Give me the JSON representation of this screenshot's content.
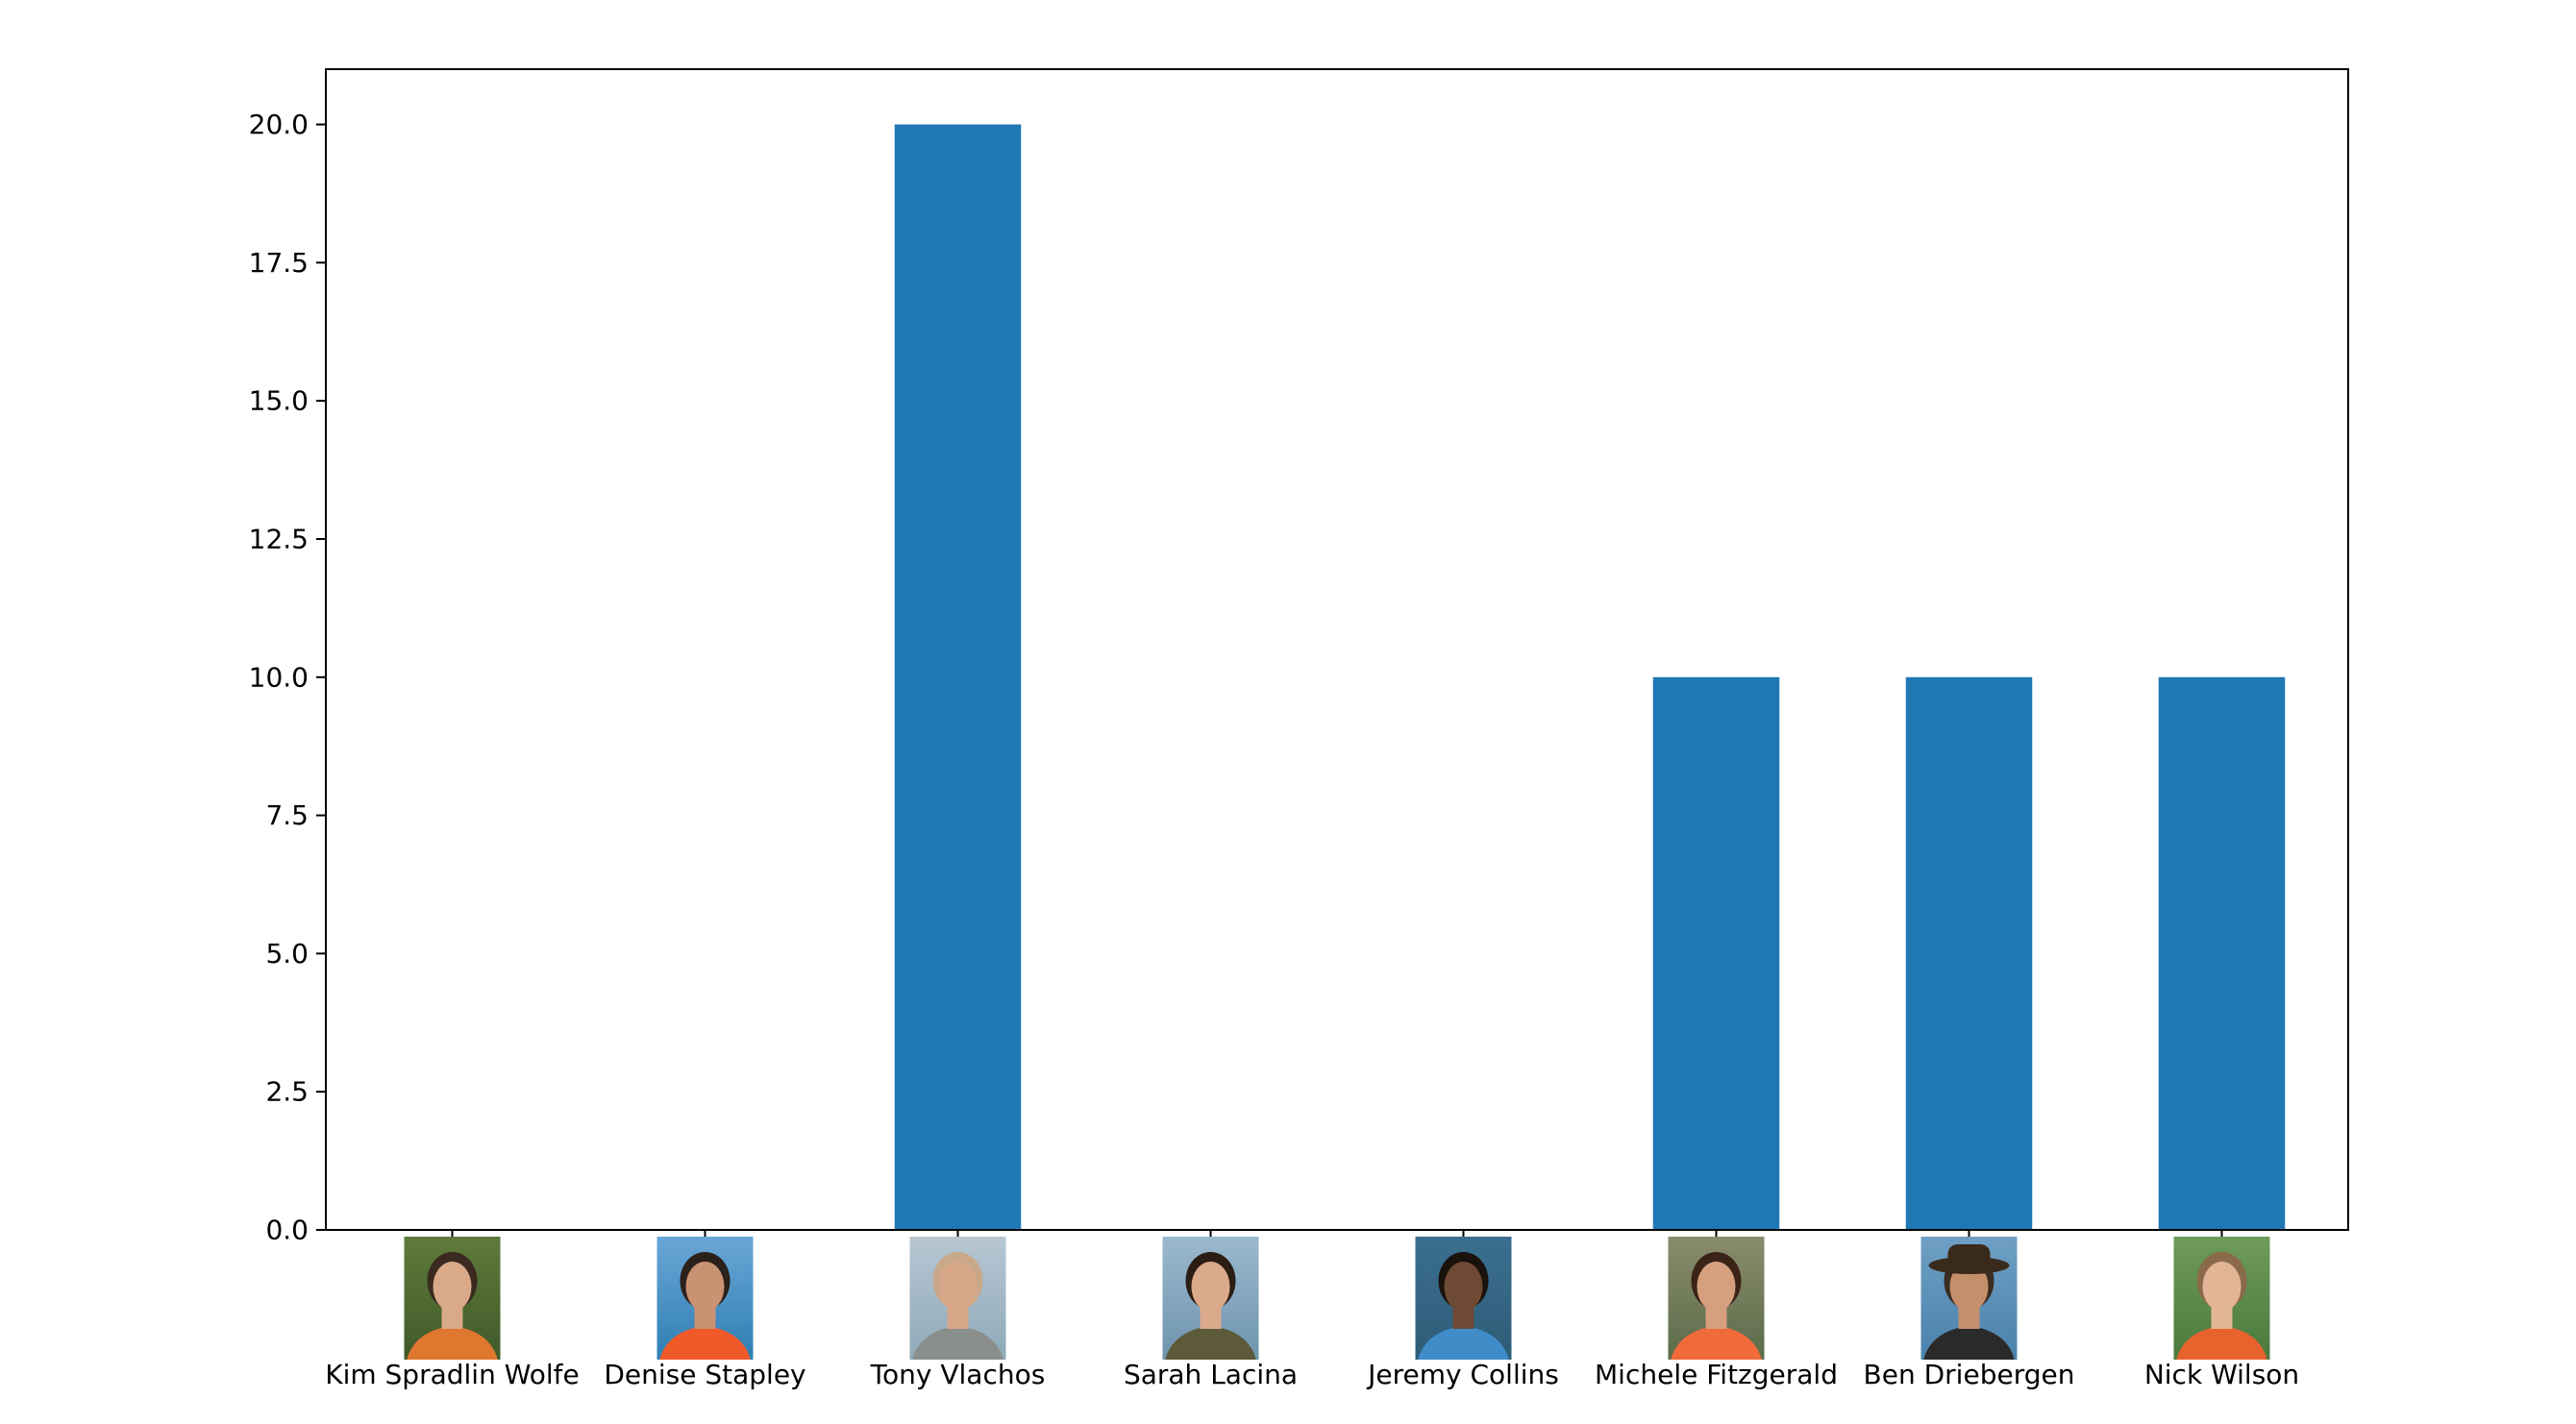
{
  "chart_data": {
    "type": "bar",
    "title": "",
    "xlabel": "",
    "ylabel": "",
    "categories": [
      "Kim Spradlin Wolfe",
      "Denise Stapley",
      "Tony Vlachos",
      "Sarah Lacina",
      "Jeremy Collins",
      "Michele Fitzgerald",
      "Ben Driebergen",
      "Nick Wilson"
    ],
    "values": [
      0,
      0,
      20,
      0,
      0,
      10,
      10,
      10
    ],
    "ylim": [
      0,
      21
    ],
    "yticks": [
      0.0,
      2.5,
      5.0,
      7.5,
      10.0,
      12.5,
      15.0,
      17.5,
      20.0
    ],
    "ytick_labels": [
      "0.0",
      "2.5",
      "5.0",
      "7.5",
      "10.0",
      "12.5",
      "15.0",
      "17.5",
      "20.0"
    ],
    "bar_color": "#1f77b4",
    "grid": false,
    "legend": "none",
    "category_images": [
      "portrait-kim-spradlin-wolfe",
      "portrait-denise-stapley",
      "portrait-tony-vlachos",
      "portrait-sarah-lacina",
      "portrait-jeremy-collins",
      "portrait-michele-fitzgerald",
      "portrait-ben-driebergen",
      "portrait-nick-wilson"
    ]
  }
}
